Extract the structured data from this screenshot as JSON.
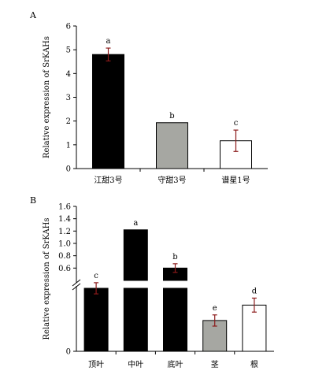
{
  "chart_data": [
    {
      "type": "bar",
      "panel": "A",
      "ylabel": "Relative expression of SrKAHs",
      "categories": [
        "江甜3号",
        "守甜3号",
        "谱星1号"
      ],
      "values": [
        4.8,
        1.93,
        1.17
      ],
      "errors": [
        0.27,
        0.0,
        0.45
      ],
      "significance": [
        "a",
        "b",
        "c"
      ],
      "colors": [
        "#000000",
        "#a6a7a2",
        "#ffffff"
      ],
      "ylim": [
        0,
        6
      ],
      "yticks": [
        "0",
        "1",
        "2",
        "3",
        "4",
        "5",
        "6"
      ]
    },
    {
      "type": "bar",
      "panel": "B",
      "ylabel": "Relative expression of SrKAHs",
      "axis_break": true,
      "categories": [
        "顶叶",
        "中叶",
        "底叶",
        "茎",
        "根"
      ],
      "values": [
        0.45,
        1.22,
        0.6,
        0.22,
        0.33
      ],
      "errors": [
        0.04,
        0.0,
        0.07,
        0.04,
        0.05
      ],
      "significance": [
        "c",
        "a",
        "b",
        "e",
        "d"
      ],
      "colors": [
        "#000000",
        "#000000",
        "#000000",
        "#a6a7a2",
        "#ffffff"
      ],
      "upper_ylim": [
        0.4,
        1.6
      ],
      "yticks": [
        "0",
        "0.6",
        "0.8",
        "1.0",
        "1.2",
        "1.4",
        "1.6"
      ]
    }
  ]
}
